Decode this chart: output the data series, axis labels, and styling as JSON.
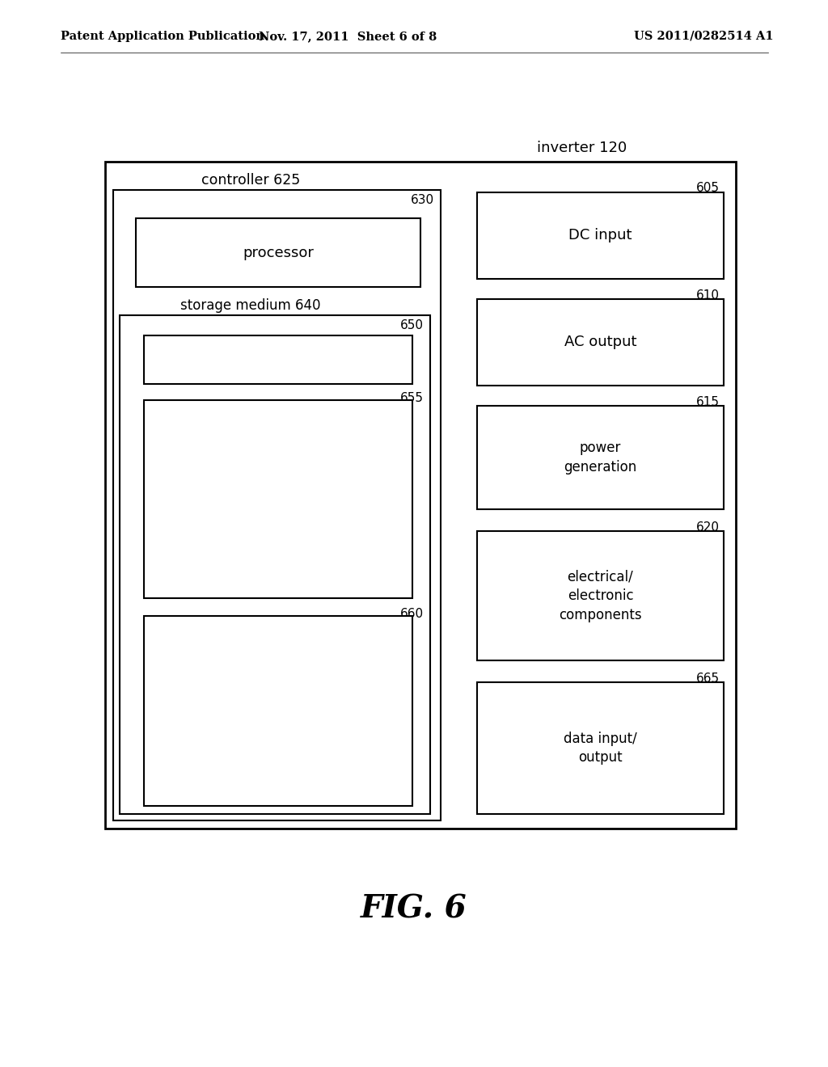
{
  "header_left": "Patent Application Publication",
  "header_mid": "Nov. 17, 2011  Sheet 6 of 8",
  "header_right": "US 2011/0282514 A1",
  "fig_label": "FIG. 6",
  "inverter_label": "inverter 120",
  "controller_label": "controller 625",
  "storage_medium_label": "storage medium 640",
  "bg_color": "#ffffff",
  "text_color": "#000000",
  "font_size_header": 10.5,
  "font_size_inverter": 13,
  "font_size_controller": 12.5,
  "font_size_storage": 12,
  "font_size_num": 11,
  "font_size_box_text": 13,
  "font_size_box_text_sm": 12,
  "font_size_fig": 28
}
